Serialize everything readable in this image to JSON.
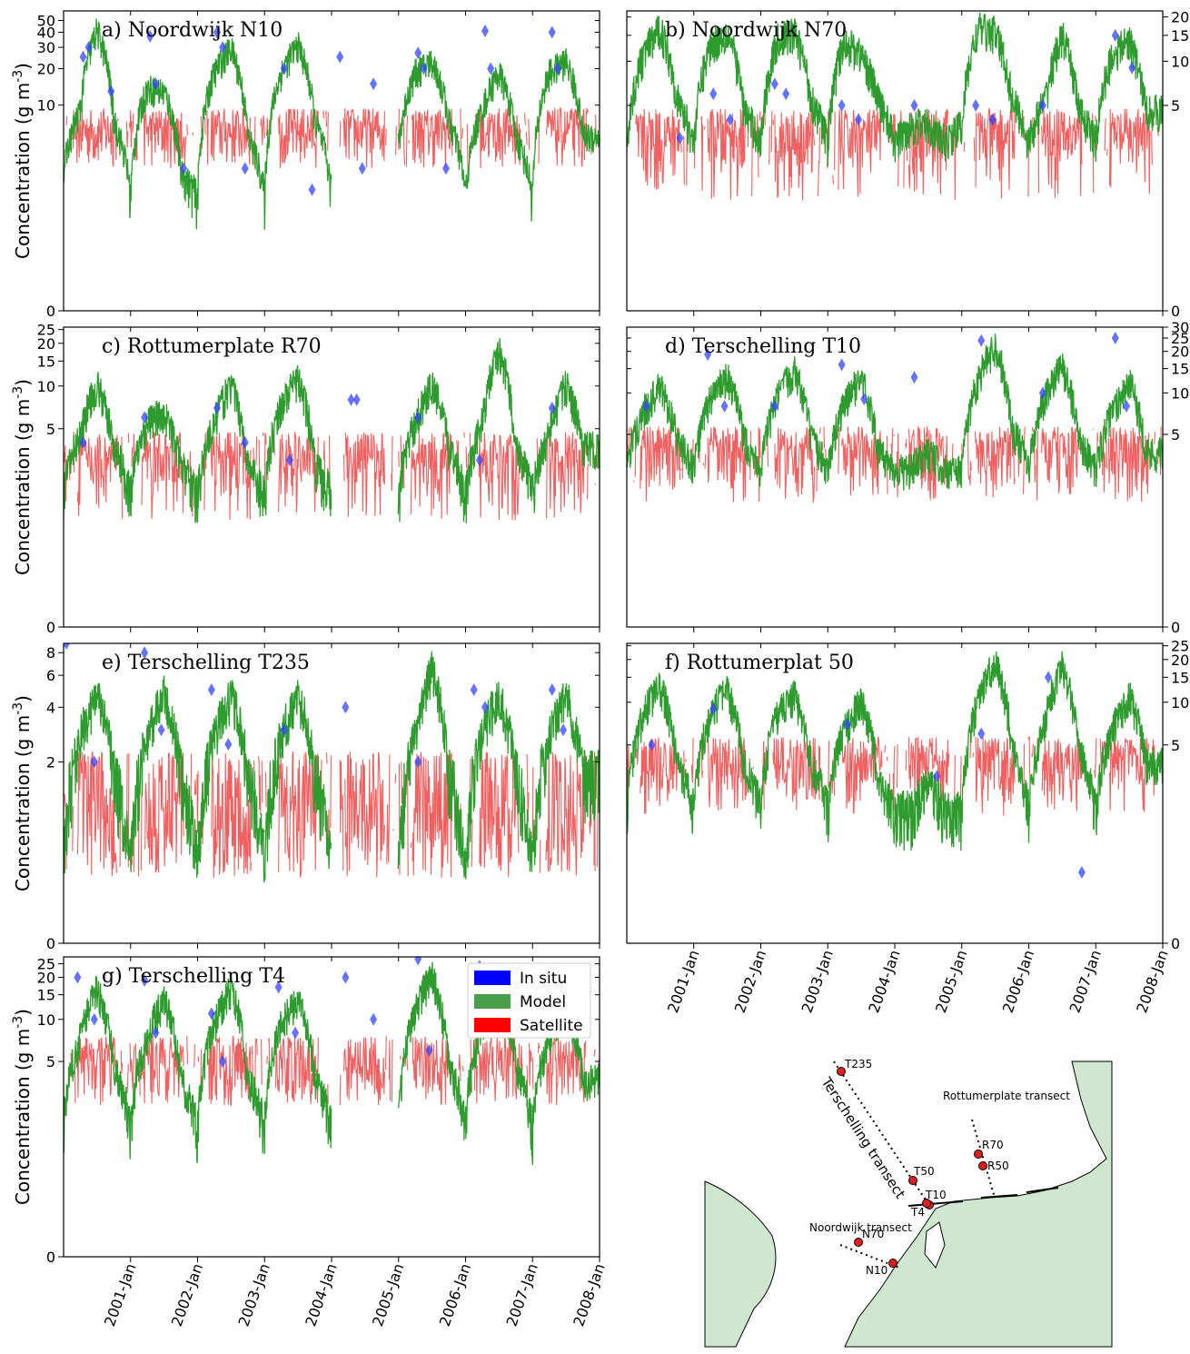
{
  "colors": {
    "in_situ": "#3344ff",
    "model": "#2e9b2e",
    "satellite": "#ee4444",
    "land": "#cfe7cf"
  },
  "legend": {
    "location": "upper-right-of-panel-g",
    "items": [
      {
        "label": "In situ",
        "color": "#0000ff"
      },
      {
        "label": "Model",
        "color": "#4a9e4a"
      },
      {
        "label": "Satellite",
        "color": "#ff0000"
      }
    ]
  },
  "time_axis": {
    "range": [
      "2000-01",
      "2008-01"
    ],
    "tick_labels": [
      "2001-Jan",
      "2002-Jan",
      "2003-Jan",
      "2004-Jan",
      "2005-Jan",
      "2006-Jan",
      "2007-Jan",
      "2008-Jan"
    ]
  },
  "chart_data": [
    {
      "type": "line",
      "id": "a",
      "title": "a) Noordwijk N10",
      "ylabel": "Concentration (g m$^{-3}$)",
      "yaxis_side": "left",
      "yscale": "symlog",
      "ylim": [
        0,
        60
      ],
      "yticks": [
        0,
        10,
        20,
        30,
        40,
        50
      ],
      "model_monthly_peak": [
        3,
        10,
        45,
        8,
        2,
        15,
        14,
        3,
        2,
        20,
        32,
        6,
        2,
        20,
        34,
        8,
        2,
        1,
        2,
        1,
        5,
        20,
        25,
        8,
        2,
        10,
        20,
        6,
        2,
        20,
        25,
        6
      ],
      "satellite_level": 5,
      "in_situ": [
        [
          "2000-04",
          25
        ],
        [
          "2000-05",
          30
        ],
        [
          "2000-09",
          13
        ],
        [
          "2001-04",
          37
        ],
        [
          "2001-05",
          15
        ],
        [
          "2001-10",
          3
        ],
        [
          "2002-04",
          40
        ],
        [
          "2002-05",
          30
        ],
        [
          "2002-09",
          3
        ],
        [
          "2003-04",
          20
        ],
        [
          "2003-09",
          2
        ],
        [
          "2004-02",
          25
        ],
        [
          "2004-06",
          3
        ],
        [
          "2004-08",
          15
        ],
        [
          "2005-04",
          27
        ],
        [
          "2005-05",
          20
        ],
        [
          "2005-09",
          3
        ],
        [
          "2006-04",
          41
        ],
        [
          "2006-05",
          20
        ],
        [
          "2007-04",
          40
        ],
        [
          "2007-05",
          20
        ]
      ]
    },
    {
      "type": "line",
      "id": "b",
      "title": "b) Noordwijk N70",
      "ylabel": "",
      "yaxis_side": "right",
      "yscale": "symlog",
      "ylim": [
        0,
        22
      ],
      "yticks": [
        0,
        5,
        10,
        15,
        20
      ],
      "model_monthly_peak": [
        3,
        12,
        18,
        6,
        3,
        14,
        17,
        5,
        3,
        15,
        17,
        6,
        3,
        15,
        12,
        6,
        3,
        4,
        4,
        3,
        4,
        18,
        17,
        6,
        3,
        6,
        16,
        5,
        3,
        12,
        15,
        5
      ],
      "satellite_level": 2.5,
      "in_situ": [
        [
          "2000-10",
          3
        ],
        [
          "2001-04",
          6
        ],
        [
          "2001-07",
          4
        ],
        [
          "2002-03",
          7
        ],
        [
          "2002-05",
          6
        ],
        [
          "2003-03",
          5
        ],
        [
          "2003-06",
          4
        ],
        [
          "2004-04",
          5
        ],
        [
          "2005-03",
          5
        ],
        [
          "2005-06",
          4
        ],
        [
          "2006-03",
          5
        ],
        [
          "2007-04",
          15
        ],
        [
          "2007-07",
          9
        ]
      ]
    },
    {
      "type": "line",
      "id": "c",
      "title": "c) Rottumerplate R70",
      "ylabel": "Concentration (g m$^{-3}$)",
      "yaxis_side": "left",
      "yscale": "symlog",
      "ylim": [
        0,
        26
      ],
      "yticks": [
        0,
        5,
        10,
        15,
        20,
        25
      ],
      "model_monthly_peak": [
        2,
        5,
        11,
        4,
        2,
        6,
        7,
        3,
        2,
        6,
        11,
        3,
        2,
        8,
        12,
        3,
        2,
        1,
        2,
        1,
        2,
        6,
        11,
        4,
        2,
        6,
        19,
        4,
        2,
        5,
        11,
        4
      ],
      "satellite_level": 2.5,
      "in_situ": [
        [
          "2000-04",
          4
        ],
        [
          "2001-03",
          6
        ],
        [
          "2002-04",
          7
        ],
        [
          "2002-09",
          4
        ],
        [
          "2003-05",
          3
        ],
        [
          "2004-04",
          8
        ],
        [
          "2004-05",
          8
        ],
        [
          "2005-04",
          6
        ],
        [
          "2006-03",
          3
        ],
        [
          "2007-04",
          7
        ]
      ]
    },
    {
      "type": "line",
      "id": "d",
      "title": "d) Terschelling T10",
      "ylabel": "",
      "yaxis_side": "right",
      "yscale": "symlog",
      "ylim": [
        0,
        30
      ],
      "yticks": [
        0,
        5,
        10,
        15,
        20,
        25,
        30
      ],
      "model_monthly_peak": [
        3,
        8,
        12,
        5,
        3,
        10,
        14,
        5,
        3,
        10,
        16,
        5,
        3,
        9,
        14,
        4,
        3,
        3,
        4,
        3,
        3,
        14,
        24,
        6,
        3,
        10,
        17,
        5,
        3,
        8,
        13,
        4
      ],
      "satellite_level": 3,
      "in_situ": [
        [
          "2000-04",
          8
        ],
        [
          "2001-03",
          19
        ],
        [
          "2001-06",
          8
        ],
        [
          "2002-03",
          8
        ],
        [
          "2003-03",
          16
        ],
        [
          "2003-07",
          9
        ],
        [
          "2004-04",
          13
        ],
        [
          "2005-04",
          24
        ],
        [
          "2006-03",
          10
        ],
        [
          "2007-04",
          25
        ],
        [
          "2007-06",
          8
        ]
      ]
    },
    {
      "type": "line",
      "id": "e",
      "title": "e) Terschelling T235",
      "ylabel": "Concentration (g m$^{-3}$)",
      "yaxis_side": "left",
      "yscale": "symlog",
      "ylim": [
        0,
        9
      ],
      "yticks": [
        0,
        2,
        4,
        6,
        8
      ],
      "model_monthly_peak": [
        1,
        3,
        5,
        2,
        1,
        3,
        5,
        2,
        1,
        3,
        5,
        2,
        1,
        3,
        5,
        2,
        1,
        1,
        1,
        1,
        1,
        3,
        7,
        2,
        1,
        3,
        5,
        2,
        1,
        3,
        5,
        2
      ],
      "satellite_level": 1.2,
      "in_situ": [
        [
          "2000-01",
          9
        ],
        [
          "2000-06",
          2
        ],
        [
          "2001-03",
          8
        ],
        [
          "2001-06",
          3
        ],
        [
          "2002-03",
          5
        ],
        [
          "2002-06",
          2.5
        ],
        [
          "2003-04",
          3
        ],
        [
          "2004-03",
          4
        ],
        [
          "2005-04",
          2
        ],
        [
          "2006-02",
          5
        ],
        [
          "2006-04",
          4
        ],
        [
          "2007-04",
          5
        ],
        [
          "2007-06",
          3
        ]
      ]
    },
    {
      "type": "line",
      "id": "f",
      "title": "f) Rottumerplat 50",
      "ylabel": "",
      "yaxis_side": "right",
      "yscale": "symlog",
      "ylim": [
        0,
        26
      ],
      "yticks": [
        0,
        5,
        10,
        15,
        20,
        25
      ],
      "model_monthly_peak": [
        2,
        9,
        14,
        4,
        2,
        9,
        13,
        4,
        2,
        9,
        12,
        4,
        2,
        7,
        11,
        3,
        2,
        2,
        3,
        2,
        2,
        11,
        21,
        5,
        2,
        8,
        20,
        5,
        2,
        7,
        12,
        4
      ],
      "satellite_level": 3,
      "in_situ": [
        [
          "2000-05",
          5
        ],
        [
          "2001-04",
          9
        ],
        [
          "2003-04",
          7
        ],
        [
          "2004-08",
          3
        ],
        [
          "2005-04",
          6
        ],
        [
          "2006-04",
          15
        ],
        [
          "2006-10",
          1
        ]
      ]
    },
    {
      "type": "line",
      "id": "g",
      "title": "g) Terschelling T4",
      "ylabel": "Concentration (g m$^{-3}$)",
      "yaxis_side": "left",
      "yscale": "symlog",
      "ylim": [
        0,
        28
      ],
      "yticks": [
        0,
        5,
        10,
        15,
        20,
        25
      ],
      "model_monthly_peak": [
        2,
        8,
        18,
        5,
        2,
        8,
        15,
        4,
        2,
        10,
        18,
        4,
        2,
        10,
        15,
        4,
        2,
        2,
        2,
        2,
        2,
        13,
        22,
        5,
        2,
        10,
        18,
        5,
        2,
        8,
        13,
        4
      ],
      "satellite_level": 4,
      "in_situ": [
        [
          "2000-03",
          20
        ],
        [
          "2000-06",
          10
        ],
        [
          "2001-03",
          19
        ],
        [
          "2001-05",
          8
        ],
        [
          "2002-03",
          11
        ],
        [
          "2002-05",
          5
        ],
        [
          "2003-03",
          17
        ],
        [
          "2003-06",
          8
        ],
        [
          "2004-03",
          20
        ],
        [
          "2004-08",
          10
        ],
        [
          "2005-04",
          27
        ],
        [
          "2005-06",
          6
        ],
        [
          "2006-03",
          24
        ],
        [
          "2006-05",
          18
        ],
        [
          "2007-04",
          8
        ]
      ]
    }
  ],
  "map": {
    "stations": [
      "T235",
      "T50",
      "T10",
      "T4",
      "R70",
      "R50",
      "N70",
      "N10"
    ],
    "transect_labels": [
      "Terschelling transect",
      "Rottumerplate transect",
      "Noordwijk transect"
    ]
  }
}
